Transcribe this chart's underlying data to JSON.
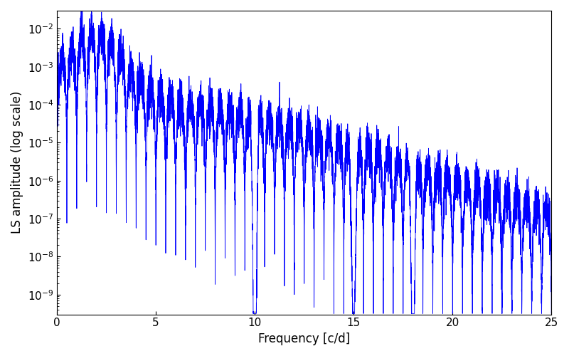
{
  "xlabel": "Frequency [c/d]",
  "ylabel": "LS amplitude (log scale)",
  "line_color": "#0000FF",
  "xlim": [
    0,
    25
  ],
  "ylim": [
    3e-10,
    0.03
  ],
  "figsize": [
    8.0,
    5.0
  ],
  "dpi": 100,
  "seed": 12345,
  "n_points": 8000,
  "freq_max": 25.0
}
